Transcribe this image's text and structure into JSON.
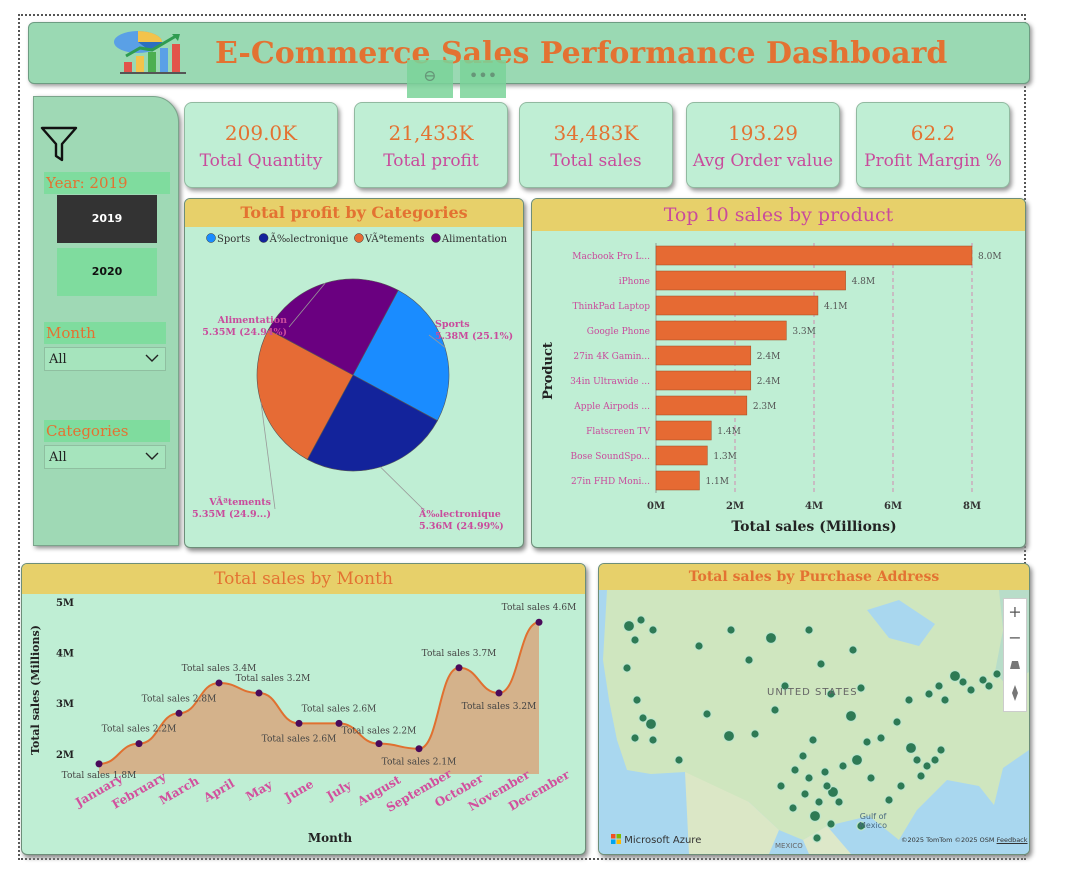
{
  "header": {
    "title": "E-Commerce Sales Performance Dashboard"
  },
  "filters": {
    "year_label": "Year: 2019",
    "years": [
      "2019",
      "2020"
    ],
    "month_label": "Month",
    "month_value": "All",
    "categories_label": "Categories",
    "categories_value": "All"
  },
  "kpis": [
    {
      "value": "209.0K",
      "label": "Total Quantity"
    },
    {
      "value": "21,433K",
      "label": "Total profit"
    },
    {
      "value": "34,483K",
      "label": "Total sales"
    },
    {
      "value": "193.29",
      "label": "Avg Order value"
    },
    {
      "value": "62.2",
      "label": "Profit Margin %"
    }
  ],
  "colors": {
    "orange": "#e37232",
    "pink": "#c94b9c",
    "bar": "#e66a33",
    "pie_sports": "#1a8cff",
    "pie_elec": "#13239b",
    "pie_vet": "#e66b35",
    "pie_ali": "#6a0080"
  },
  "chart_data": [
    {
      "type": "pie",
      "title": "Total profit by Categories",
      "legend": [
        "Sports",
        "Ã‰lectronique",
        "VÃªtements",
        "Alimentation"
      ],
      "slices": [
        {
          "name": "Sports",
          "value": 5.38,
          "label_value": "5.38M (25.1%)"
        },
        {
          "name": "Ã‰lectronique",
          "value": 5.36,
          "label_value": "5.36M (24.99%)"
        },
        {
          "name": "VÃªtements",
          "value": 5.35,
          "label_value": "5.35M (24.9...)"
        },
        {
          "name": "Alimentation",
          "value": 5.35,
          "label_value": "5.35M (24.94%)"
        }
      ]
    },
    {
      "type": "bar",
      "title": "Top 10 sales by product",
      "ylabel": "Product",
      "xlabel": "Total sales (Millions)",
      "xlim": [
        0,
        8
      ],
      "xticks": [
        "0M",
        "2M",
        "4M",
        "6M",
        "8M"
      ],
      "categories": [
        "Macbook Pro L...",
        "iPhone",
        "ThinkPad Laptop",
        "Google Phone",
        "27in 4K Gamin...",
        "34in Ultrawide ...",
        "Apple Airpods ...",
        "Flatscreen TV",
        "Bose SoundSpo...",
        "27in FHD Moni..."
      ],
      "values": [
        8.0,
        4.8,
        4.1,
        3.3,
        2.4,
        2.4,
        2.3,
        1.4,
        1.3,
        1.1
      ],
      "labels": [
        "8.0M",
        "4.8M",
        "4.1M",
        "3.3M",
        "2.4M",
        "2.4M",
        "2.3M",
        "1.4M",
        "1.3M",
        "1.1M"
      ]
    },
    {
      "type": "area",
      "title": "Total sales by Month",
      "xlabel": "Month",
      "ylabel": "Total sales (Millions)",
      "ylim": [
        1.6,
        5
      ],
      "yticks": [
        "2M",
        "3M",
        "4M",
        "5M"
      ],
      "categories": [
        "January",
        "February",
        "March",
        "April",
        "May",
        "June",
        "July",
        "August",
        "September",
        "October",
        "November",
        "December"
      ],
      "values": [
        1.8,
        2.2,
        2.8,
        3.4,
        3.2,
        2.6,
        2.6,
        2.2,
        2.1,
        3.7,
        3.2,
        4.6
      ],
      "labels": [
        "Total sales 1.8M",
        "Total sales 2.2M",
        "Total sales 2.8M",
        "Total sales 3.4M",
        "Total sales 3.2M",
        "Total sales 2.6M",
        "Total sales 2.6M",
        "Total sales 2.2M",
        "Total sales 2.1M",
        "Total sales 3.7M",
        "Total sales 3.2M",
        "Total sales 4.6M"
      ]
    }
  ],
  "map": {
    "title": "Total sales by Purchase Address",
    "country_label": "UNITED STATES",
    "gulf_label": "Gulf of Mexico",
    "mexico_label": "MEXICO",
    "brand": "Microsoft Azure",
    "copyright": "©2025 TomTom ©2025 OSM",
    "feedback": "Feedback",
    "zoom_in": "+",
    "zoom_out": "−"
  }
}
